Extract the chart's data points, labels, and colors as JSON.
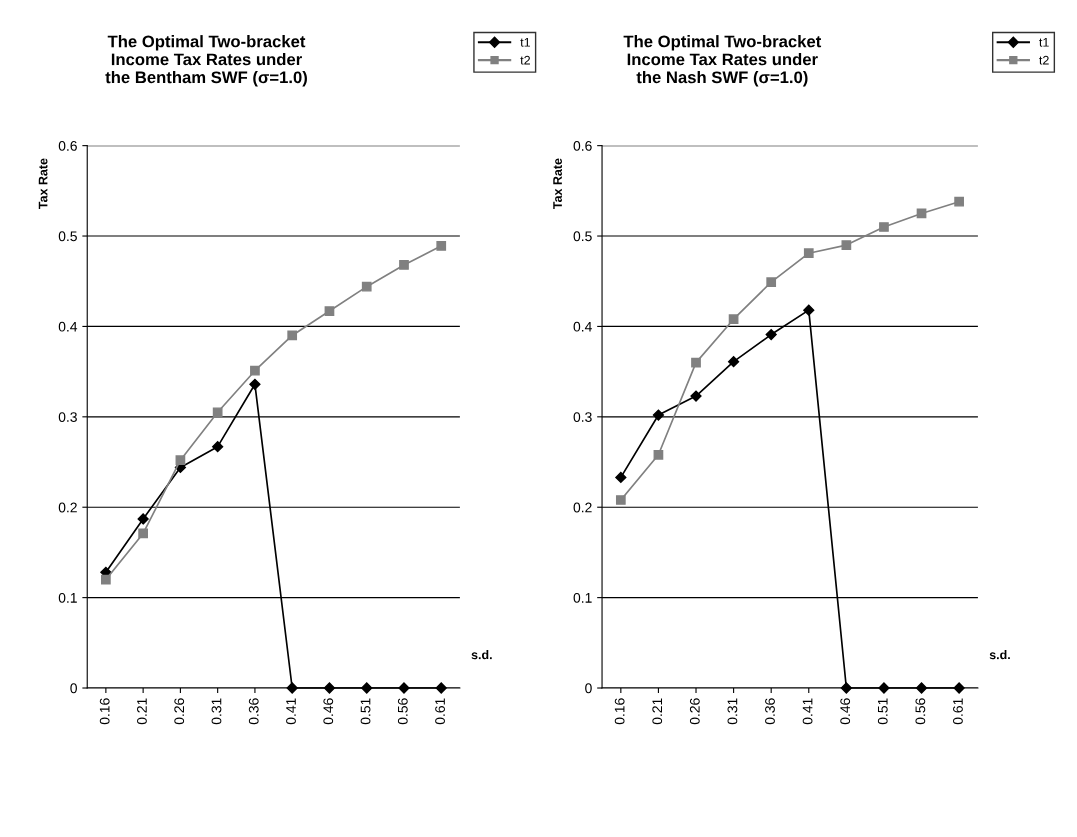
{
  "chart_data": [
    {
      "type": "line",
      "title": "The Optimal Two-bracket\nIncome Tax Rates under\nthe Bentham SWF (σ=1.0)",
      "xlabel": "s.d.",
      "ylabel": "Tax Rate",
      "categories": [
        "0.16",
        "0.21",
        "0.26",
        "0.31",
        "0.36",
        "0.41",
        "0.46",
        "0.51",
        "0.56",
        "0.61"
      ],
      "series": [
        {
          "name": "t1",
          "color": "#000000",
          "marker": "diamond",
          "values": [
            0.128,
            0.187,
            0.244,
            0.267,
            0.336,
            0,
            0,
            0,
            0,
            0
          ]
        },
        {
          "name": "t2",
          "color": "#808080",
          "marker": "square",
          "values": [
            0.12,
            0.171,
            0.252,
            0.305,
            0.351,
            0.39,
            0.417,
            0.444,
            0.468,
            0.489
          ]
        }
      ],
      "ylim": [
        0,
        0.6
      ],
      "yticks": [
        0,
        0.1,
        0.2,
        0.3,
        0.4,
        0.5,
        0.6
      ],
      "grid": "y",
      "legend": "top right"
    },
    {
      "type": "line",
      "title": "The Optimal Two-bracket\nIncome Tax Rates under\nthe Nash SWF (σ=1.0)",
      "xlabel": "s.d.",
      "ylabel": "Tax Rate",
      "categories": [
        "0.16",
        "0.21",
        "0.26",
        "0.31",
        "0.36",
        "0.41",
        "0.46",
        "0.51",
        "0.56",
        "0.61"
      ],
      "series": [
        {
          "name": "t1",
          "color": "#000000",
          "marker": "diamond",
          "values": [
            0.233,
            0.302,
            0.323,
            0.361,
            0.391,
            0.418,
            0,
            0,
            0,
            0
          ]
        },
        {
          "name": "t2",
          "color": "#808080",
          "marker": "square",
          "values": [
            0.208,
            0.258,
            0.36,
            0.408,
            0.449,
            0.481,
            0.49,
            0.51,
            0.525,
            0.538
          ]
        }
      ],
      "ylim": [
        0,
        0.6
      ],
      "yticks": [
        0,
        0.1,
        0.2,
        0.3,
        0.4,
        0.5,
        0.6
      ],
      "grid": "y",
      "legend": "top right"
    }
  ]
}
